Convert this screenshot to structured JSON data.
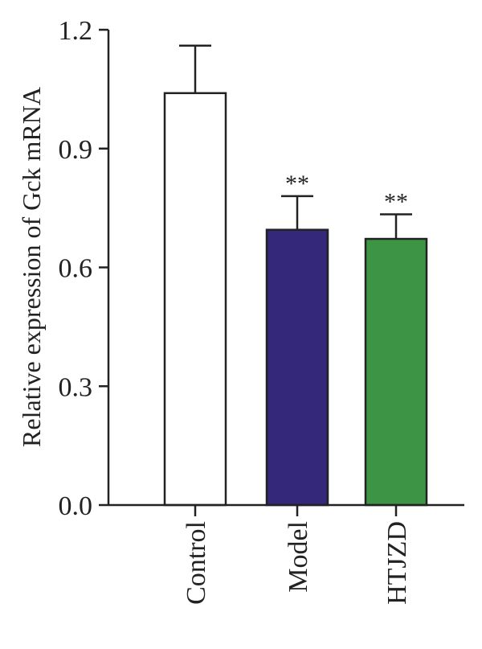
{
  "chart_data": {
    "type": "bar",
    "ylabel": "Relative expression of Gck mRNA",
    "ylim": [
      0,
      1.2
    ],
    "yticks": [
      "0.0",
      "0.3",
      "0.6",
      "0.9",
      "1.2"
    ],
    "categories": [
      "Control",
      "Model",
      "HTJZD"
    ],
    "values": [
      1.04,
      0.695,
      0.672
    ],
    "errors": [
      0.12,
      0.085,
      0.062
    ],
    "significance": [
      "",
      "**",
      "**"
    ],
    "colors": [
      "#ffffff",
      "#33287a",
      "#3d9444"
    ],
    "edge_color": "#222222",
    "grid": false,
    "legend": "none"
  }
}
